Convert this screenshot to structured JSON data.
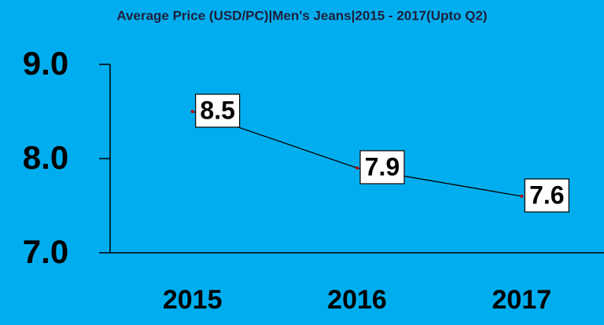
{
  "chart_data": {
    "type": "line",
    "title": "Average Price (USD/PC)|Men's Jeans|2015 - 2017(Upto Q2)",
    "categories": [
      "2015",
      "2016",
      "2017"
    ],
    "values": [
      8.5,
      7.9,
      7.6
    ],
    "color": "#000000",
    "marker_color": "#c00000",
    "background": "#00aeef",
    "ylim": [
      7,
      9
    ],
    "yticks": [
      {
        "value": 7,
        "label": "7.0"
      },
      {
        "value": 8,
        "label": "8.0"
      },
      {
        "value": 9,
        "label": "9.0"
      }
    ],
    "grid": false
  }
}
